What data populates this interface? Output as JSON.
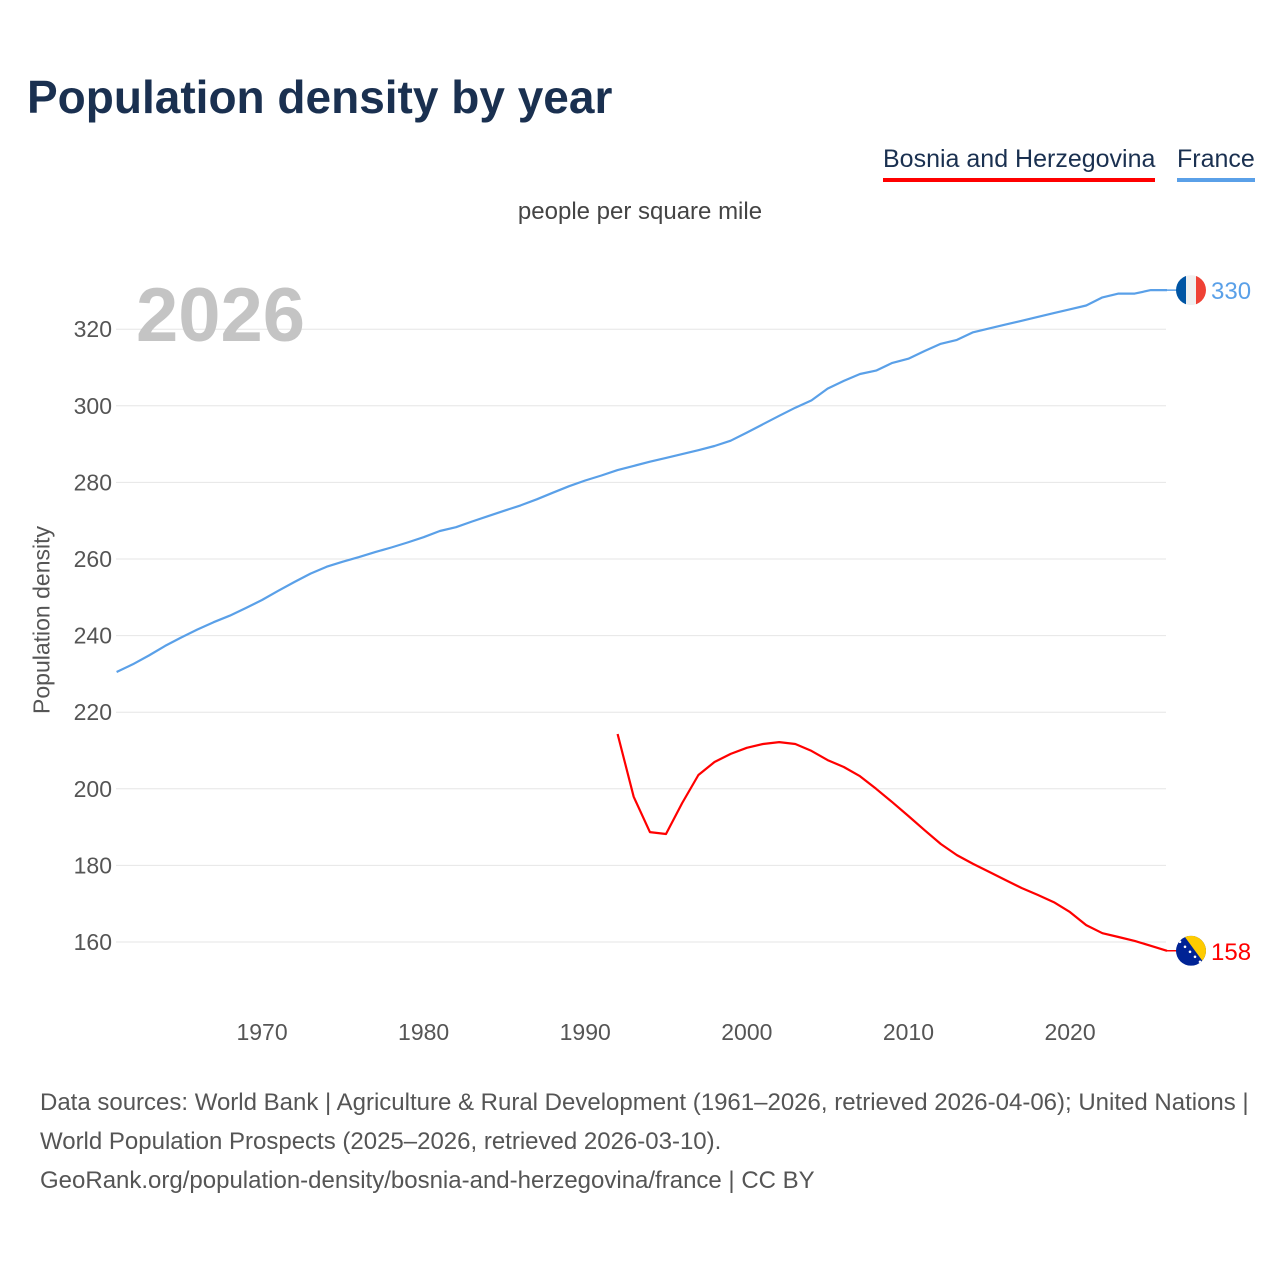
{
  "title": "Population density by year",
  "legend": [
    "Bosnia and Herzegovina",
    "France"
  ],
  "unit_label": "people per square mile",
  "year_label": "2026",
  "footer": {
    "sources": "Data sources: World Bank | Agriculture & Rural Development (1961–2026, retrieved 2026-04-06); United Nations | World Population Prospects (2025–2026, retrieved 2026-03-10).",
    "link": "GeoRank.org/population-density/bosnia-and-herzegovina/france | CC BY"
  },
  "chart_data": {
    "type": "line",
    "title": "Population density by year",
    "xlabel": "",
    "ylabel": "Population density",
    "xlim": [
      1961,
      2026
    ],
    "ylim": [
      150,
      335
    ],
    "xticks": [
      1970,
      1980,
      1990,
      2000,
      2010,
      2020
    ],
    "yticks": [
      160,
      180,
      200,
      220,
      240,
      260,
      280,
      300,
      320
    ],
    "grid": true,
    "legend_position": "top-right",
    "series": [
      {
        "name": "France",
        "color": "#5aa0e8",
        "end_label": "330",
        "x_start": 1961,
        "values": [
          230.5,
          232.5,
          234.8,
          237.3,
          239.5,
          241.6,
          243.5,
          245.2,
          247.2,
          249.3,
          251.7,
          254,
          256.2,
          258,
          259.3,
          260.5,
          261.8,
          263,
          264.3,
          265.7,
          267.3,
          268.3,
          269.8,
          271.2,
          272.6,
          274,
          275.6,
          277.3,
          279,
          280.5,
          281.8,
          283.2,
          284.3,
          285.4,
          286.4,
          287.4,
          288.4,
          289.5,
          290.9,
          293,
          295.2,
          297.4,
          299.5,
          301.4,
          304.5,
          306.5,
          308.3,
          309.2,
          311.2,
          312.3,
          314.3,
          316.2,
          317.2,
          319.2,
          320.2,
          321.2,
          322.2,
          323.2,
          324.2,
          325.2,
          326.2,
          328.3,
          329.3,
          329.3,
          330.2,
          330.2
        ]
      },
      {
        "name": "Bosnia and Herzegovina",
        "color": "#ff0000",
        "end_label": "158",
        "x_start": 1992,
        "values": [
          214.3,
          197.9,
          188.7,
          188.2,
          196.3,
          203.6,
          207,
          209.1,
          210.7,
          211.7,
          212.2,
          211.7,
          209.9,
          207.5,
          205.7,
          203.3,
          200,
          196.5,
          192.9,
          189.2,
          185.6,
          182.7,
          180.4,
          178.3,
          176.2,
          174.1,
          172.3,
          170.4,
          167.8,
          164.4,
          162.3,
          161.3,
          160.3,
          159,
          157.7
        ]
      }
    ]
  }
}
